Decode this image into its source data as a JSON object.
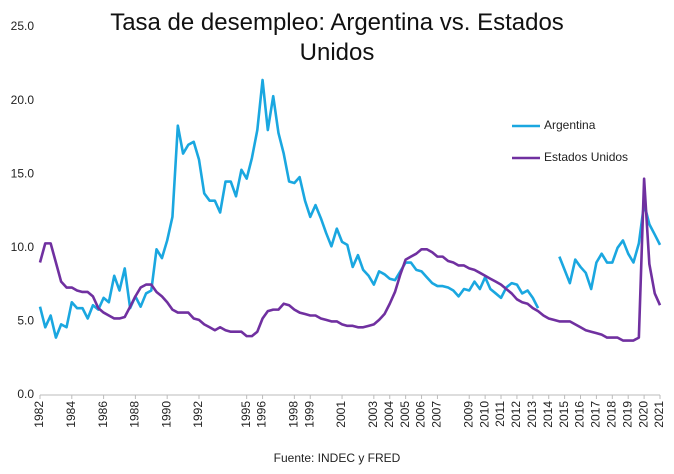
{
  "chart_data": {
    "type": "line",
    "title": "Tasa de desempleo: Argentina vs. Estados Unidos",
    "source": "Fuente: INDEC y FRED",
    "legend": "upper right",
    "grid": false,
    "xlim": [
      1982,
      2021
    ],
    "xticks": [
      1982,
      1984,
      1986,
      1988,
      1990,
      1992,
      1995,
      1996,
      1998,
      1999,
      2001,
      2003,
      2004,
      2005,
      2006,
      2007,
      2009,
      2010,
      2011,
      2012,
      2013,
      2014,
      2015,
      2016,
      2017,
      2018,
      2019,
      2020,
      2021
    ],
    "ylim": [
      0,
      25
    ],
    "yticks": [
      {
        "value": 0,
        "label": "0.0"
      },
      {
        "value": 5,
        "label": "5.0"
      },
      {
        "value": 10,
        "label": "10.0"
      },
      {
        "value": 15,
        "label": "15.0"
      },
      {
        "value": 20,
        "label": "20.0"
      },
      {
        "value": 25,
        "label": "25.0"
      }
    ],
    "x": [
      1982,
      1982.33,
      1982.67,
      1983,
      1983.33,
      1983.67,
      1984,
      1984.33,
      1984.67,
      1985,
      1985.33,
      1985.67,
      1986,
      1986.33,
      1986.67,
      1987,
      1987.33,
      1987.67,
      1988,
      1988.33,
      1988.67,
      1989,
      1989.33,
      1989.67,
      1990,
      1990.33,
      1990.67,
      1991,
      1991.33,
      1991.67,
      1992,
      1992.33,
      1992.67,
      1993,
      1993.33,
      1993.67,
      1994,
      1994.33,
      1994.67,
      1995,
      1995.33,
      1995.67,
      1996,
      1996.33,
      1996.67,
      1997,
      1997.33,
      1997.67,
      1998,
      1998.33,
      1998.67,
      1999,
      1999.33,
      1999.67,
      2000,
      2000.33,
      2000.67,
      2001,
      2001.33,
      2001.67,
      2002,
      2002.33,
      2002.67,
      2003,
      2003.33,
      2003.67,
      2004,
      2004.33,
      2004.67,
      2005,
      2005.33,
      2005.67,
      2006,
      2006.33,
      2006.67,
      2007,
      2007.33,
      2007.67,
      2008,
      2008.33,
      2008.67,
      2009,
      2009.33,
      2009.67,
      2010,
      2010.33,
      2010.67,
      2011,
      2011.33,
      2011.67,
      2012,
      2012.33,
      2012.67,
      2013,
      2013.33,
      2013.67,
      2014,
      2014.33,
      2014.67,
      2015,
      2015.33,
      2015.67,
      2016,
      2016.33,
      2016.67,
      2017,
      2017.33,
      2017.67,
      2018,
      2018.33,
      2018.67,
      2019,
      2019.33,
      2019.67,
      2020,
      2020.33,
      2020.67,
      2021
    ],
    "series": [
      {
        "name": "Argentina",
        "color": "#1aa7e0",
        "values": [
          6.0,
          4.6,
          5.4,
          3.9,
          4.8,
          4.6,
          6.3,
          5.9,
          5.9,
          5.2,
          6.1,
          5.8,
          6.6,
          6.3,
          8.1,
          7.1,
          8.6,
          5.9,
          6.7,
          6.0,
          6.9,
          7.1,
          9.9,
          9.3,
          10.5,
          12.1,
          18.3,
          16.4,
          17.0,
          17.2,
          16.0,
          13.7,
          13.2,
          13.2,
          12.4,
          14.5,
          14.5,
          13.5,
          15.3,
          14.7,
          16.1,
          18.0,
          21.4,
          18.0,
          20.3,
          17.8,
          16.4,
          14.5,
          14.4,
          14.8,
          13.2,
          12.1,
          12.9,
          12.0,
          11.0,
          10.1,
          11.3,
          10.4,
          10.2,
          8.7,
          9.5,
          8.5,
          8.1,
          7.5,
          8.4,
          8.2,
          7.9,
          7.8,
          8.4,
          9.0,
          9.0,
          8.5,
          8.4,
          8.0,
          7.6,
          7.4,
          7.4,
          7.3,
          7.1,
          6.7,
          7.2,
          7.1,
          7.7,
          7.2,
          8.0,
          7.2,
          6.9,
          6.6,
          7.3,
          7.6,
          7.5,
          6.9,
          7.1,
          6.6,
          5.9,
          null,
          null,
          null,
          9.4,
          8.5,
          7.6,
          9.2,
          8.7,
          8.3,
          7.2,
          9.0,
          9.6,
          9.0,
          9.0,
          10.0,
          10.5,
          9.6,
          9.0,
          10.3,
          13.0,
          11.6,
          10.9,
          10.2
        ]
      },
      {
        "name": "Estados Unidos",
        "color": "#7030a0",
        "values": [
          9.0,
          10.3,
          10.3,
          9.0,
          7.7,
          7.3,
          7.3,
          7.1,
          7.0,
          7.0,
          6.7,
          5.9,
          5.6,
          5.4,
          5.2,
          5.2,
          5.3,
          6.0,
          6.7,
          7.3,
          7.5,
          7.5,
          7.0,
          6.7,
          6.3,
          5.8,
          5.6,
          5.6,
          5.6,
          5.2,
          5.1,
          4.8,
          4.6,
          4.4,
          4.6,
          4.4,
          4.3,
          4.3,
          4.3,
          4.0,
          4.0,
          4.3,
          5.2,
          5.7,
          5.8,
          5.8,
          6.2,
          6.1,
          5.8,
          5.6,
          5.5,
          5.4,
          5.4,
          5.2,
          5.1,
          5.0,
          5.0,
          4.8,
          4.7,
          4.7,
          4.6,
          4.6,
          4.7,
          4.8,
          5.1,
          5.5,
          6.2,
          7.0,
          8.2,
          9.2,
          9.4,
          9.6,
          9.9,
          9.9,
          9.7,
          9.4,
          9.4,
          9.1,
          9.0,
          8.8,
          8.8,
          8.6,
          8.5,
          8.3,
          8.1,
          7.9,
          7.7,
          7.5,
          7.2,
          6.9,
          6.5,
          6.3,
          6.2,
          5.9,
          5.7,
          5.4,
          5.2,
          5.1,
          5.0,
          5.0,
          5.0,
          4.8,
          4.6,
          4.4,
          4.3,
          4.2,
          4.1,
          3.9,
          3.9,
          3.9,
          3.7,
          3.7,
          3.7,
          3.9,
          14.7,
          8.9,
          6.9,
          6.1
        ]
      }
    ]
  }
}
